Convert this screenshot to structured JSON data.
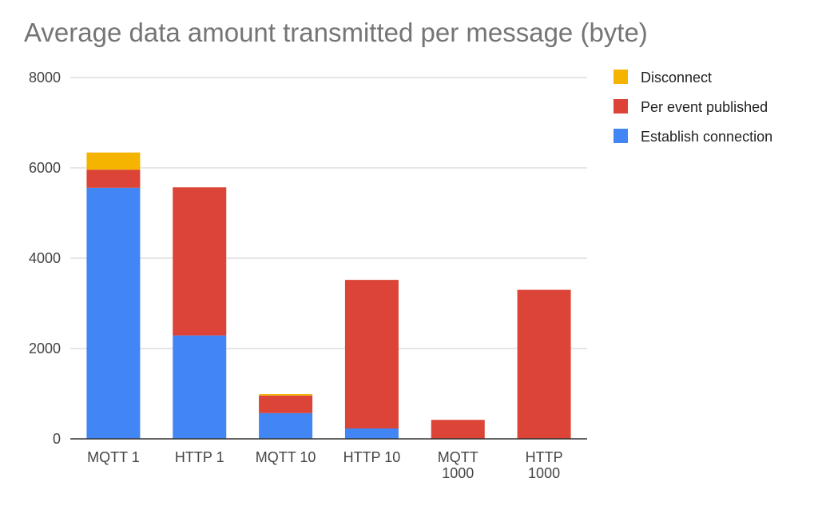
{
  "chart_data": {
    "type": "bar",
    "stacked": true,
    "title": "Average data amount transmitted per message (byte)",
    "xlabel": "",
    "ylabel": "",
    "categories": [
      [
        "MQTT 1"
      ],
      [
        "HTTP 1"
      ],
      [
        "MQTT 10"
      ],
      [
        "HTTP 10"
      ],
      [
        "MQTT",
        "1000"
      ],
      [
        "HTTP",
        "1000"
      ]
    ],
    "series": [
      {
        "name": "Establish connection",
        "color": "#4285f4",
        "values": [
          5560,
          2290,
          570,
          230,
          0,
          0
        ]
      },
      {
        "name": "Per event published",
        "color": "#db4437",
        "values": [
          400,
          3280,
          390,
          3290,
          420,
          3300
        ]
      },
      {
        "name": "Disconnect",
        "color": "#f4b400",
        "values": [
          380,
          0,
          30,
          0,
          0,
          0
        ]
      }
    ],
    "ylim": [
      0,
      8000
    ],
    "yticks": [
      0,
      2000,
      4000,
      6000,
      8000
    ],
    "grid": true,
    "legend_position": "right",
    "legend_order": [
      "Disconnect",
      "Per event published",
      "Establish connection"
    ]
  }
}
